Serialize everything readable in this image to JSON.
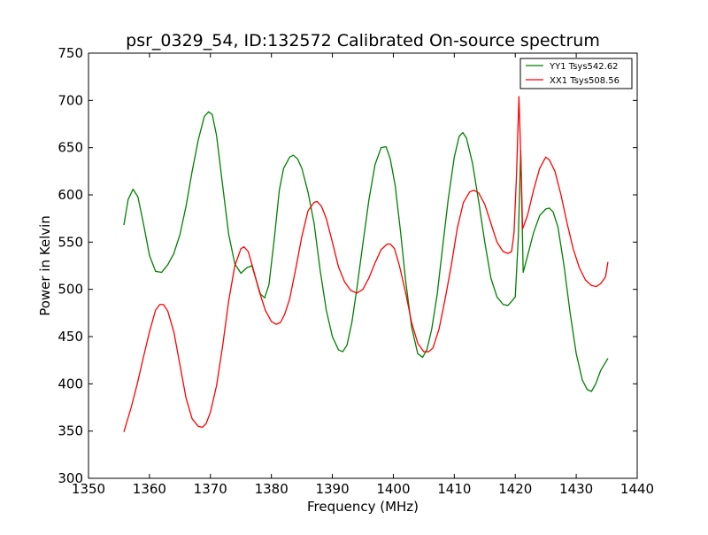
{
  "chart_data": {
    "type": "line",
    "title": "psr_0329_54, ID:132572 Calibrated On-source spectrum",
    "xlabel": "Frequency (MHz)",
    "ylabel": "Power in Kelvin",
    "xlim": [
      1350,
      1440
    ],
    "ylim": [
      300,
      750
    ],
    "x_ticks": [
      1350,
      1360,
      1370,
      1380,
      1390,
      1400,
      1410,
      1420,
      1430,
      1440
    ],
    "y_ticks": [
      300,
      350,
      400,
      450,
      500,
      550,
      600,
      650,
      700,
      750
    ],
    "grid": false,
    "legend_position": "upper-right",
    "series": [
      {
        "name": "YY1 Tsys542.62",
        "color": "#008000",
        "points": [
          [
            1355.8,
            568
          ],
          [
            1356.5,
            595
          ],
          [
            1357.3,
            606
          ],
          [
            1358.1,
            598
          ],
          [
            1359.0,
            570
          ],
          [
            1360.0,
            536
          ],
          [
            1361.0,
            519
          ],
          [
            1362.0,
            518
          ],
          [
            1363.0,
            526
          ],
          [
            1364.0,
            538
          ],
          [
            1365.0,
            558
          ],
          [
            1366.0,
            588
          ],
          [
            1367.0,
            625
          ],
          [
            1368.0,
            658
          ],
          [
            1369.0,
            683
          ],
          [
            1369.7,
            688
          ],
          [
            1370.3,
            685
          ],
          [
            1371.0,
            663
          ],
          [
            1372.0,
            610
          ],
          [
            1373.0,
            558
          ],
          [
            1374.0,
            527
          ],
          [
            1375.0,
            517
          ],
          [
            1376.0,
            523
          ],
          [
            1376.8,
            525
          ],
          [
            1377.5,
            510
          ],
          [
            1378.2,
            495
          ],
          [
            1378.9,
            491
          ],
          [
            1379.6,
            505
          ],
          [
            1380.5,
            555
          ],
          [
            1381.3,
            605
          ],
          [
            1382.0,
            628
          ],
          [
            1383.0,
            640
          ],
          [
            1383.6,
            642
          ],
          [
            1384.3,
            638
          ],
          [
            1385.0,
            628
          ],
          [
            1386.0,
            603
          ],
          [
            1387.0,
            570
          ],
          [
            1388.0,
            520
          ],
          [
            1389.0,
            478
          ],
          [
            1390.0,
            450
          ],
          [
            1391.0,
            436
          ],
          [
            1391.7,
            434
          ],
          [
            1392.4,
            441
          ],
          [
            1393.2,
            465
          ],
          [
            1394.0,
            500
          ],
          [
            1395.0,
            548
          ],
          [
            1396.0,
            595
          ],
          [
            1397.0,
            632
          ],
          [
            1398.0,
            650
          ],
          [
            1398.8,
            651
          ],
          [
            1399.5,
            638
          ],
          [
            1400.3,
            610
          ],
          [
            1401.2,
            560
          ],
          [
            1402.0,
            510
          ],
          [
            1403.0,
            460
          ],
          [
            1404.0,
            432
          ],
          [
            1404.8,
            428
          ],
          [
            1405.5,
            436
          ],
          [
            1406.3,
            458
          ],
          [
            1407.2,
            495
          ],
          [
            1408.0,
            540
          ],
          [
            1409.0,
            595
          ],
          [
            1410.0,
            640
          ],
          [
            1410.8,
            662
          ],
          [
            1411.4,
            666
          ],
          [
            1412.0,
            660
          ],
          [
            1413.0,
            633
          ],
          [
            1414.0,
            593
          ],
          [
            1415.0,
            550
          ],
          [
            1416.0,
            512
          ],
          [
            1417.0,
            492
          ],
          [
            1418.0,
            484
          ],
          [
            1418.8,
            483
          ],
          [
            1419.5,
            488
          ],
          [
            1420.0,
            492
          ],
          [
            1420.5,
            555
          ],
          [
            1420.9,
            647
          ],
          [
            1421.3,
            518
          ],
          [
            1422.0,
            535
          ],
          [
            1423.0,
            560
          ],
          [
            1424.0,
            578
          ],
          [
            1425.0,
            585
          ],
          [
            1425.6,
            586
          ],
          [
            1426.2,
            582
          ],
          [
            1427.0,
            566
          ],
          [
            1428.0,
            525
          ],
          [
            1429.0,
            475
          ],
          [
            1430.0,
            432
          ],
          [
            1431.0,
            404
          ],
          [
            1431.8,
            394
          ],
          [
            1432.5,
            392
          ],
          [
            1433.2,
            400
          ],
          [
            1434.0,
            414
          ],
          [
            1435.2,
            427
          ]
        ]
      },
      {
        "name": "XX1 Tsys508.56",
        "color": "#ff0000",
        "points": [
          [
            1355.8,
            349
          ],
          [
            1357.0,
            375
          ],
          [
            1358.0,
            400
          ],
          [
            1359.0,
            428
          ],
          [
            1360.0,
            455
          ],
          [
            1361.0,
            478
          ],
          [
            1361.7,
            484
          ],
          [
            1362.3,
            484
          ],
          [
            1363.0,
            477
          ],
          [
            1364.0,
            455
          ],
          [
            1365.0,
            420
          ],
          [
            1366.0,
            385
          ],
          [
            1367.0,
            363
          ],
          [
            1368.0,
            355
          ],
          [
            1368.7,
            354
          ],
          [
            1369.3,
            358
          ],
          [
            1370.0,
            370
          ],
          [
            1371.0,
            398
          ],
          [
            1372.0,
            440
          ],
          [
            1373.0,
            488
          ],
          [
            1374.0,
            525
          ],
          [
            1375.0,
            543
          ],
          [
            1375.5,
            545
          ],
          [
            1376.2,
            540
          ],
          [
            1377.0,
            522
          ],
          [
            1378.0,
            498
          ],
          [
            1379.0,
            478
          ],
          [
            1380.0,
            466
          ],
          [
            1380.8,
            463
          ],
          [
            1381.5,
            465
          ],
          [
            1382.2,
            474
          ],
          [
            1383.0,
            490
          ],
          [
            1384.0,
            522
          ],
          [
            1385.0,
            556
          ],
          [
            1386.0,
            583
          ],
          [
            1387.0,
            592
          ],
          [
            1387.5,
            593
          ],
          [
            1388.2,
            588
          ],
          [
            1389.0,
            575
          ],
          [
            1390.0,
            550
          ],
          [
            1391.0,
            524
          ],
          [
            1392.0,
            508
          ],
          [
            1393.0,
            499
          ],
          [
            1394.0,
            496
          ],
          [
            1395.0,
            500
          ],
          [
            1396.0,
            512
          ],
          [
            1397.0,
            528
          ],
          [
            1398.0,
            542
          ],
          [
            1399.0,
            548
          ],
          [
            1399.5,
            548
          ],
          [
            1400.2,
            543
          ],
          [
            1401.0,
            525
          ],
          [
            1402.0,
            497
          ],
          [
            1403.0,
            465
          ],
          [
            1404.0,
            443
          ],
          [
            1405.0,
            434
          ],
          [
            1405.8,
            434
          ],
          [
            1406.5,
            438
          ],
          [
            1407.5,
            458
          ],
          [
            1408.5,
            490
          ],
          [
            1409.5,
            525
          ],
          [
            1410.5,
            565
          ],
          [
            1411.5,
            592
          ],
          [
            1412.5,
            603
          ],
          [
            1413.2,
            605
          ],
          [
            1414.0,
            602
          ],
          [
            1415.0,
            590
          ],
          [
            1416.0,
            570
          ],
          [
            1417.0,
            550
          ],
          [
            1418.0,
            540
          ],
          [
            1418.8,
            538
          ],
          [
            1419.4,
            540
          ],
          [
            1419.8,
            560
          ],
          [
            1420.2,
            620
          ],
          [
            1420.6,
            704
          ],
          [
            1421.0,
            620
          ],
          [
            1421.2,
            564
          ],
          [
            1422.0,
            578
          ],
          [
            1423.0,
            605
          ],
          [
            1424.0,
            628
          ],
          [
            1425.0,
            640
          ],
          [
            1425.6,
            637
          ],
          [
            1426.5,
            625
          ],
          [
            1427.5,
            600
          ],
          [
            1428.5,
            570
          ],
          [
            1429.5,
            543
          ],
          [
            1430.5,
            523
          ],
          [
            1431.5,
            510
          ],
          [
            1432.5,
            504
          ],
          [
            1433.3,
            503
          ],
          [
            1434.0,
            506
          ],
          [
            1434.8,
            513
          ],
          [
            1435.2,
            529
          ]
        ]
      }
    ]
  }
}
